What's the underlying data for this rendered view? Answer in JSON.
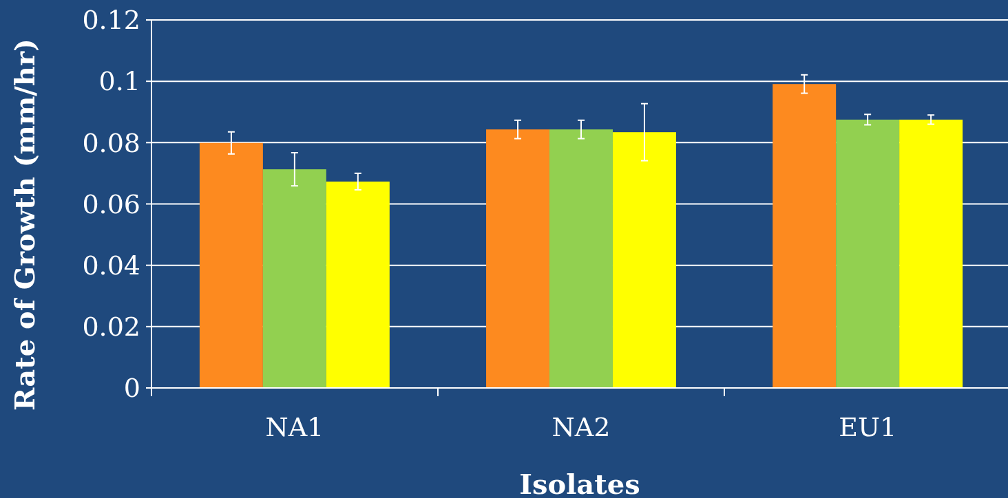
{
  "chart_data": {
    "type": "bar",
    "xlabel": "Isolates",
    "ylabel": "Rate of Growth (mm/hr)",
    "categories": [
      "NA1",
      "NA2",
      "EU1"
    ],
    "series": [
      {
        "color": "#fd8a1f",
        "values": [
          0.0799,
          0.0843,
          0.0991
        ],
        "errors": [
          0.0036,
          0.003,
          0.003
        ]
      },
      {
        "color": "#92d050",
        "values": [
          0.0713,
          0.0843,
          0.0875
        ],
        "errors": [
          0.0054,
          0.003,
          0.0017
        ]
      },
      {
        "color": "#ffff00",
        "values": [
          0.0673,
          0.0834,
          0.0875
        ],
        "errors": [
          0.0027,
          0.0093,
          0.0015
        ]
      }
    ],
    "ylim": [
      0,
      0.12
    ],
    "yticks": [
      0,
      0.02,
      0.04,
      0.06,
      0.08,
      0.1,
      0.12
    ],
    "grid": "y"
  }
}
